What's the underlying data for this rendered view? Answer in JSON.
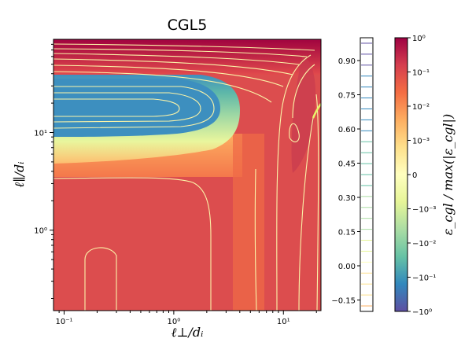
{
  "chart_data": {
    "type": "heatmap",
    "title": "CGL5",
    "xlabel": "ℓ⊥/dᵢ",
    "ylabel": "ℓ∥/dᵢ",
    "xscale": "log",
    "yscale": "log",
    "xlim": [
      0.08,
      22
    ],
    "ylim": [
      0.15,
      90
    ],
    "x_ticks": [
      {
        "value": 0.1,
        "label": "10⁻¹"
      },
      {
        "value": 1,
        "label": "10⁰"
      },
      {
        "value": 10,
        "label": "10¹"
      }
    ],
    "y_ticks": [
      {
        "value": 1,
        "label": "10⁰"
      },
      {
        "value": 10,
        "label": "10¹"
      }
    ],
    "colorbar": {
      "label": "ε_cgl / max(|ε_cgl|)",
      "scale": "symlog",
      "colormap": [
        "#5e4fa2",
        "#3288bd",
        "#66c2a5",
        "#abdda4",
        "#e6f598",
        "#ffffbf",
        "#fee08b",
        "#fdae61",
        "#f46d43",
        "#d53e4f",
        "#9e0142"
      ],
      "ticks": [
        {
          "value": 1,
          "label": "10⁰"
        },
        {
          "value": 0.1,
          "label": "10⁻¹"
        },
        {
          "value": 0.01,
          "label": "10⁻²"
        },
        {
          "value": 0.001,
          "label": "10⁻³"
        },
        {
          "value": 0,
          "label": "0"
        },
        {
          "value": -0.001,
          "label": "−10⁻³"
        },
        {
          "value": -0.01,
          "label": "−10⁻²"
        },
        {
          "value": -0.1,
          "label": "−10⁻¹"
        },
        {
          "value": -1,
          "label": "−10⁰"
        }
      ]
    },
    "contour_levels": {
      "ticks": [
        0.9,
        0.75,
        0.6,
        0.45,
        0.3,
        0.15,
        0.0,
        -0.15
      ],
      "tick_labels": [
        "0.90",
        "0.75",
        "0.60",
        "0.45",
        "0.30",
        "0.15",
        "0.00",
        "−0.15"
      ],
      "range": [
        -0.2,
        1.0
      ]
    }
  }
}
